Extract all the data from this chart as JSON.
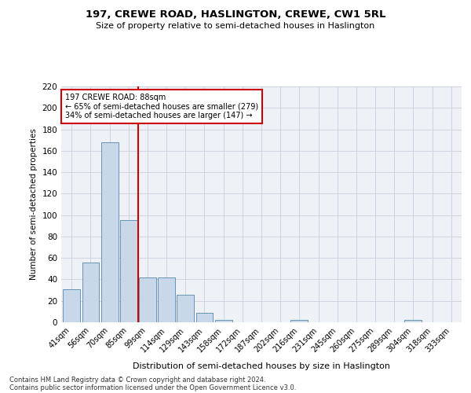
{
  "title": "197, CREWE ROAD, HASLINGTON, CREWE, CW1 5RL",
  "subtitle": "Size of property relative to semi-detached houses in Haslington",
  "xlabel": "Distribution of semi-detached houses by size in Haslington",
  "ylabel": "Number of semi-detached properties",
  "bar_color": "#c8d8e8",
  "bar_edge_color": "#5588aa",
  "vline_color": "#cc0000",
  "annotation_text_line1": "197 CREWE ROAD: 88sqm",
  "annotation_text_line2": "← 65% of semi-detached houses are smaller (279)",
  "annotation_text_line3": "34% of semi-detached houses are larger (147) →",
  "annotation_box_facecolor": "#ffffff",
  "annotation_box_edgecolor": "#cc0000",
  "categories": [
    "41sqm",
    "56sqm",
    "70sqm",
    "85sqm",
    "99sqm",
    "114sqm",
    "129sqm",
    "143sqm",
    "158sqm",
    "172sqm",
    "187sqm",
    "202sqm",
    "216sqm",
    "231sqm",
    "245sqm",
    "260sqm",
    "275sqm",
    "289sqm",
    "304sqm",
    "318sqm",
    "333sqm"
  ],
  "values": [
    31,
    56,
    168,
    95,
    42,
    42,
    26,
    9,
    2,
    0,
    0,
    0,
    2,
    0,
    0,
    0,
    0,
    0,
    2,
    0,
    0
  ],
  "ylim": [
    0,
    220
  ],
  "yticks": [
    0,
    20,
    40,
    60,
    80,
    100,
    120,
    140,
    160,
    180,
    200,
    220
  ],
  "vline_x_index": 3.5,
  "grid_color": "#c8d0dc",
  "bg_color": "#eef2f7",
  "footnote_line1": "Contains HM Land Registry data © Crown copyright and database right 2024.",
  "footnote_line2": "Contains public sector information licensed under the Open Government Licence v3.0."
}
